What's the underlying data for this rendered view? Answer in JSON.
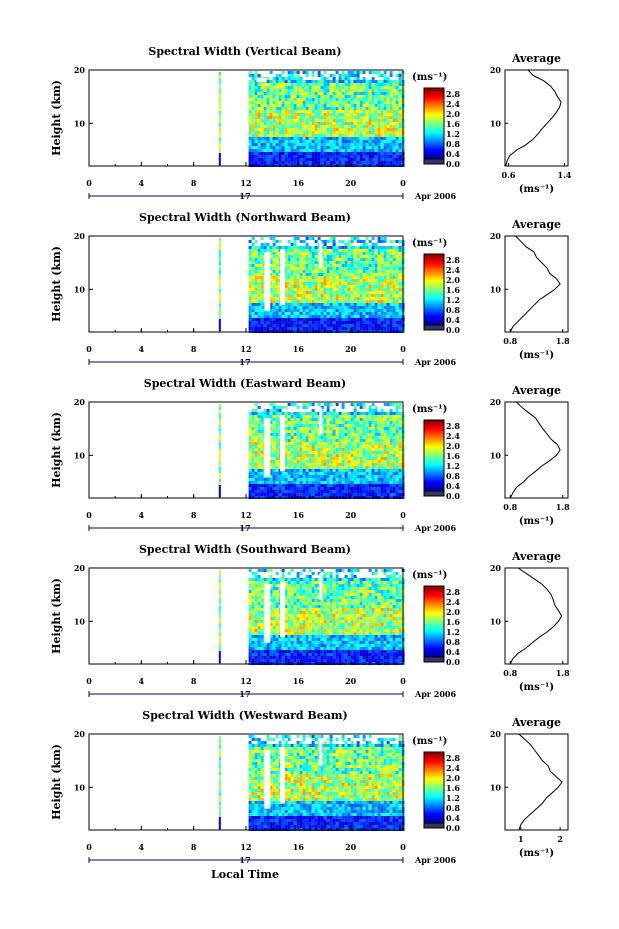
{
  "figure": {
    "xlabel_bottom": "Local Time",
    "date_label": "Apr 2006",
    "day_label": "17"
  },
  "chart_data": [
    {
      "type": "heatmap",
      "title": "Spectral Width (Vertical Beam)",
      "ylabel": "Height (km)",
      "xlim": [
        0,
        24
      ],
      "ylim": [
        2,
        20
      ],
      "xticks": [
        "0",
        "4",
        "8",
        "12",
        "16",
        "20",
        "0"
      ],
      "yticks": [
        "10",
        "20"
      ],
      "colorbar": {
        "unit": "(ms⁻¹)",
        "ticks": [
          "0.0",
          "0.4",
          "0.8",
          "1.2",
          "1.6",
          "2.0",
          "2.4",
          "2.8"
        ]
      },
      "average": {
        "title": "Average",
        "unit": "(ms⁻¹)",
        "xticks": [
          "0.6",
          "1.4"
        ],
        "xlim": [
          0.55,
          1.45
        ],
        "profile": [
          [
            0.56,
            2
          ],
          [
            0.58,
            3
          ],
          [
            0.62,
            4
          ],
          [
            0.72,
            5
          ],
          [
            0.85,
            6
          ],
          [
            0.95,
            7
          ],
          [
            1.02,
            8
          ],
          [
            1.08,
            9
          ],
          [
            1.15,
            10
          ],
          [
            1.22,
            11
          ],
          [
            1.28,
            12
          ],
          [
            1.33,
            13
          ],
          [
            1.35,
            14
          ],
          [
            1.3,
            15
          ],
          [
            1.26,
            16
          ],
          [
            1.2,
            17
          ],
          [
            1.1,
            18
          ],
          [
            0.95,
            19
          ],
          [
            0.88,
            20
          ]
        ]
      }
    },
    {
      "type": "heatmap",
      "title": "Spectral Width (Northward Beam)",
      "ylabel": "Height (km)",
      "xlim": [
        0,
        24
      ],
      "ylim": [
        2,
        20
      ],
      "xticks": [
        "0",
        "4",
        "8",
        "12",
        "16",
        "20",
        "0"
      ],
      "yticks": [
        "10",
        "20"
      ],
      "colorbar": {
        "unit": "(ms⁻¹)",
        "ticks": [
          "0.0",
          "0.4",
          "0.8",
          "1.2",
          "1.6",
          "2.0",
          "2.4",
          "2.8"
        ]
      },
      "average": {
        "title": "Average",
        "unit": "(ms⁻¹)",
        "xticks": [
          "0.8",
          "1.8"
        ],
        "xlim": [
          0.7,
          1.9
        ],
        "profile": [
          [
            0.8,
            2
          ],
          [
            0.85,
            3
          ],
          [
            0.95,
            4
          ],
          [
            1.05,
            5
          ],
          [
            1.15,
            6
          ],
          [
            1.25,
            7
          ],
          [
            1.35,
            8
          ],
          [
            1.5,
            9
          ],
          [
            1.65,
            10
          ],
          [
            1.75,
            11
          ],
          [
            1.68,
            12
          ],
          [
            1.55,
            13
          ],
          [
            1.5,
            14
          ],
          [
            1.4,
            15
          ],
          [
            1.3,
            16
          ],
          [
            1.25,
            17
          ],
          [
            1.1,
            18
          ],
          [
            1.0,
            19
          ],
          [
            0.9,
            20
          ]
        ]
      }
    },
    {
      "type": "heatmap",
      "title": "Spectral Width (Eastward Beam)",
      "ylabel": "Height (km)",
      "xlim": [
        0,
        24
      ],
      "ylim": [
        2,
        20
      ],
      "xticks": [
        "0",
        "4",
        "8",
        "12",
        "16",
        "20",
        "0"
      ],
      "yticks": [
        "10",
        "20"
      ],
      "colorbar": {
        "unit": "(ms⁻¹)",
        "ticks": [
          "0.0",
          "0.4",
          "0.8",
          "1.2",
          "1.6",
          "2.0",
          "2.4",
          "2.8"
        ]
      },
      "average": {
        "title": "Average",
        "unit": "(ms⁻¹)",
        "xticks": [
          "0.8",
          "1.8"
        ],
        "xlim": [
          0.7,
          1.9
        ],
        "profile": [
          [
            0.8,
            2
          ],
          [
            0.85,
            3
          ],
          [
            0.92,
            4
          ],
          [
            1.05,
            5
          ],
          [
            1.15,
            6
          ],
          [
            1.28,
            7
          ],
          [
            1.4,
            8
          ],
          [
            1.55,
            9
          ],
          [
            1.68,
            10
          ],
          [
            1.75,
            11
          ],
          [
            1.7,
            12
          ],
          [
            1.58,
            13
          ],
          [
            1.5,
            14
          ],
          [
            1.42,
            15
          ],
          [
            1.35,
            16
          ],
          [
            1.28,
            17
          ],
          [
            1.15,
            18
          ],
          [
            1.02,
            19
          ],
          [
            0.92,
            20
          ]
        ]
      }
    },
    {
      "type": "heatmap",
      "title": "Spectral Width (Southward Beam)",
      "ylabel": "Height (km)",
      "xlim": [
        0,
        24
      ],
      "ylim": [
        2,
        20
      ],
      "xticks": [
        "0",
        "4",
        "8",
        "12",
        "16",
        "20",
        "0"
      ],
      "yticks": [
        "10",
        "20"
      ],
      "colorbar": {
        "unit": "(ms⁻¹)",
        "ticks": [
          "0.0",
          "0.4",
          "0.8",
          "1.2",
          "1.6",
          "2.0",
          "2.4",
          "2.8"
        ]
      },
      "average": {
        "title": "Average",
        "unit": "(ms⁻¹)",
        "xticks": [
          "0.8",
          "1.8"
        ],
        "xlim": [
          0.7,
          1.9
        ],
        "profile": [
          [
            0.8,
            2
          ],
          [
            0.85,
            3
          ],
          [
            0.95,
            4
          ],
          [
            1.1,
            5
          ],
          [
            1.22,
            6
          ],
          [
            1.35,
            7
          ],
          [
            1.5,
            8
          ],
          [
            1.62,
            9
          ],
          [
            1.72,
            10
          ],
          [
            1.78,
            11
          ],
          [
            1.72,
            12
          ],
          [
            1.65,
            13
          ],
          [
            1.62,
            14
          ],
          [
            1.58,
            15
          ],
          [
            1.5,
            16
          ],
          [
            1.4,
            17
          ],
          [
            1.25,
            18
          ],
          [
            1.1,
            19
          ],
          [
            0.95,
            20
          ]
        ]
      }
    },
    {
      "type": "heatmap",
      "title": "Spectral Width (Westward Beam)",
      "ylabel": "Height (km)",
      "xlim": [
        0,
        24
      ],
      "ylim": [
        2,
        20
      ],
      "xticks": [
        "0",
        "4",
        "8",
        "12",
        "16",
        "20",
        "0"
      ],
      "yticks": [
        "10",
        "20"
      ],
      "colorbar": {
        "unit": "(ms⁻¹)",
        "ticks": [
          "0.0",
          "0.4",
          "0.8",
          "1.2",
          "1.6",
          "2.0",
          "2.4",
          "2.8"
        ]
      },
      "average": {
        "title": "Average",
        "unit": "(ms⁻¹)",
        "xticks": [
          "1",
          "2"
        ],
        "xlim": [
          0.6,
          2.2
        ],
        "profile": [
          [
            0.95,
            2
          ],
          [
            1.0,
            3
          ],
          [
            1.1,
            4
          ],
          [
            1.25,
            5
          ],
          [
            1.4,
            6
          ],
          [
            1.55,
            7
          ],
          [
            1.65,
            8
          ],
          [
            1.8,
            9
          ],
          [
            1.95,
            10
          ],
          [
            2.05,
            11
          ],
          [
            1.9,
            12
          ],
          [
            1.75,
            13
          ],
          [
            1.7,
            14
          ],
          [
            1.55,
            15
          ],
          [
            1.45,
            16
          ],
          [
            1.35,
            17
          ],
          [
            1.25,
            18
          ],
          [
            1.1,
            19
          ],
          [
            0.95,
            20
          ]
        ]
      }
    }
  ]
}
